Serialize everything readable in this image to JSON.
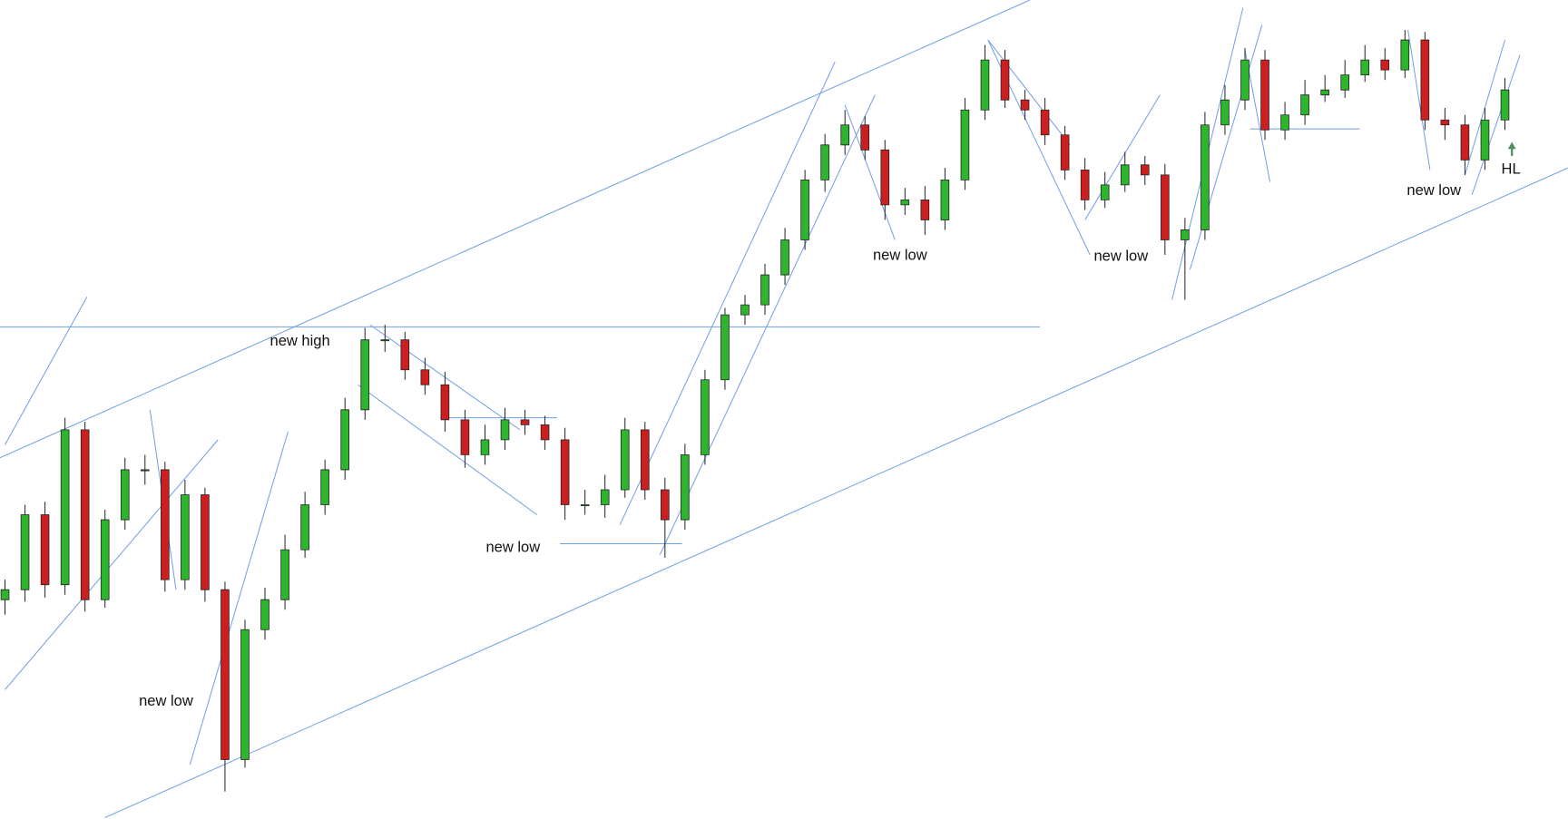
{
  "chart_data": {
    "type": "candlestick",
    "open": [
      220,
      230,
      305,
      235,
      390,
      220,
      300,
      350,
      350,
      240,
      325,
      230,
      60,
      190,
      220,
      270,
      315,
      350,
      410,
      480,
      480,
      450,
      435,
      400,
      365,
      380,
      400,
      395,
      380,
      315,
      315,
      330,
      390,
      330,
      300,
      365,
      440,
      505,
      515,
      545,
      580,
      640,
      675,
      695,
      670,
      615,
      620,
      600,
      640,
      710,
      760,
      720,
      710,
      685,
      650,
      620,
      635,
      655,
      645,
      580,
      590,
      695,
      720,
      760,
      690,
      705,
      725,
      730,
      745,
      760,
      750,
      780,
      700,
      695,
      660,
      700
    ],
    "high": [
      240,
      315,
      318,
      402,
      398,
      310,
      362,
      365,
      358,
      340,
      332,
      238,
      200,
      232,
      285,
      328,
      360,
      422,
      492,
      495,
      488,
      462,
      448,
      410,
      395,
      412,
      410,
      404,
      392,
      330,
      345,
      402,
      398,
      342,
      376,
      450,
      512,
      525,
      556,
      592,
      650,
      686,
      710,
      704,
      680,
      632,
      634,
      652,
      722,
      775,
      770,
      730,
      722,
      694,
      662,
      648,
      668,
      664,
      656,
      602,
      708,
      735,
      772,
      770,
      718,
      740,
      745,
      760,
      775,
      772,
      790,
      788,
      712,
      705,
      712,
      742
    ],
    "low": [
      205,
      218,
      222,
      225,
      208,
      212,
      290,
      335,
      228,
      230,
      218,
      28,
      52,
      180,
      210,
      262,
      305,
      340,
      400,
      468,
      440,
      425,
      388,
      352,
      355,
      370,
      385,
      370,
      300,
      305,
      302,
      322,
      320,
      262,
      290,
      355,
      430,
      495,
      505,
      535,
      570,
      628,
      665,
      660,
      600,
      605,
      585,
      590,
      630,
      700,
      712,
      700,
      675,
      640,
      610,
      612,
      628,
      635,
      565,
      520,
      580,
      685,
      710,
      680,
      680,
      695,
      718,
      722,
      738,
      740,
      742,
      690,
      680,
      645,
      650,
      690
    ],
    "close": [
      230,
      305,
      235,
      390,
      220,
      300,
      350,
      350,
      240,
      325,
      230,
      60,
      190,
      220,
      270,
      315,
      350,
      410,
      480,
      480,
      450,
      435,
      400,
      365,
      380,
      400,
      395,
      380,
      315,
      315,
      330,
      390,
      330,
      300,
      365,
      440,
      505,
      515,
      545,
      580,
      640,
      675,
      695,
      670,
      615,
      620,
      600,
      640,
      710,
      760,
      720,
      710,
      685,
      650,
      620,
      635,
      655,
      645,
      580,
      590,
      695,
      720,
      760,
      690,
      705,
      725,
      730,
      745,
      760,
      750,
      780,
      700,
      695,
      660,
      700,
      730
    ],
    "ylim": [
      0,
      820
    ],
    "up_color": "#2db52d",
    "down_color": "#cc1f1f",
    "annotations": [
      "new high",
      "new low",
      "new low",
      "new low",
      "new low",
      "new low",
      "HL"
    ]
  }
}
